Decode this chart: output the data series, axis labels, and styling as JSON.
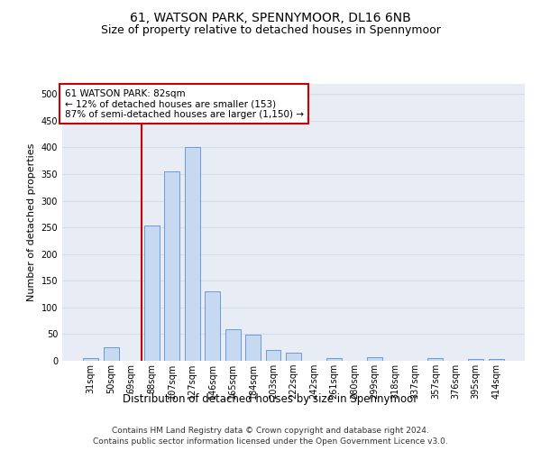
{
  "title": "61, WATSON PARK, SPENNYMOOR, DL16 6NB",
  "subtitle": "Size of property relative to detached houses in Spennymoor",
  "xlabel": "Distribution of detached houses by size in Spennymoor",
  "ylabel": "Number of detached properties",
  "categories": [
    "31sqm",
    "50sqm",
    "69sqm",
    "88sqm",
    "107sqm",
    "127sqm",
    "146sqm",
    "165sqm",
    "184sqm",
    "203sqm",
    "222sqm",
    "242sqm",
    "261sqm",
    "280sqm",
    "299sqm",
    "318sqm",
    "337sqm",
    "357sqm",
    "376sqm",
    "395sqm",
    "414sqm"
  ],
  "values": [
    5,
    25,
    0,
    253,
    355,
    400,
    130,
    60,
    49,
    20,
    15,
    0,
    5,
    0,
    7,
    0,
    0,
    5,
    0,
    3,
    4
  ],
  "bar_color": "#c6d9f0",
  "bar_edge_color": "#5b8fd4",
  "vline_color": "#cc0000",
  "annotation_text": "61 WATSON PARK: 82sqm\n← 12% of detached houses are smaller (153)\n87% of semi-detached houses are larger (1,150) →",
  "annotation_box_color": "#ffffff",
  "annotation_box_edge_color": "#cc0000",
  "ylim": [
    0,
    520
  ],
  "yticks": [
    0,
    50,
    100,
    150,
    200,
    250,
    300,
    350,
    400,
    450,
    500
  ],
  "grid_color": "#d4dce8",
  "background_color": "#e8edf5",
  "footer_line1": "Contains HM Land Registry data © Crown copyright and database right 2024.",
  "footer_line2": "Contains public sector information licensed under the Open Government Licence v3.0.",
  "title_fontsize": 10,
  "subtitle_fontsize": 9,
  "xlabel_fontsize": 8.5,
  "ylabel_fontsize": 8,
  "tick_fontsize": 7,
  "footer_fontsize": 6.5,
  "annot_fontsize": 7.5
}
